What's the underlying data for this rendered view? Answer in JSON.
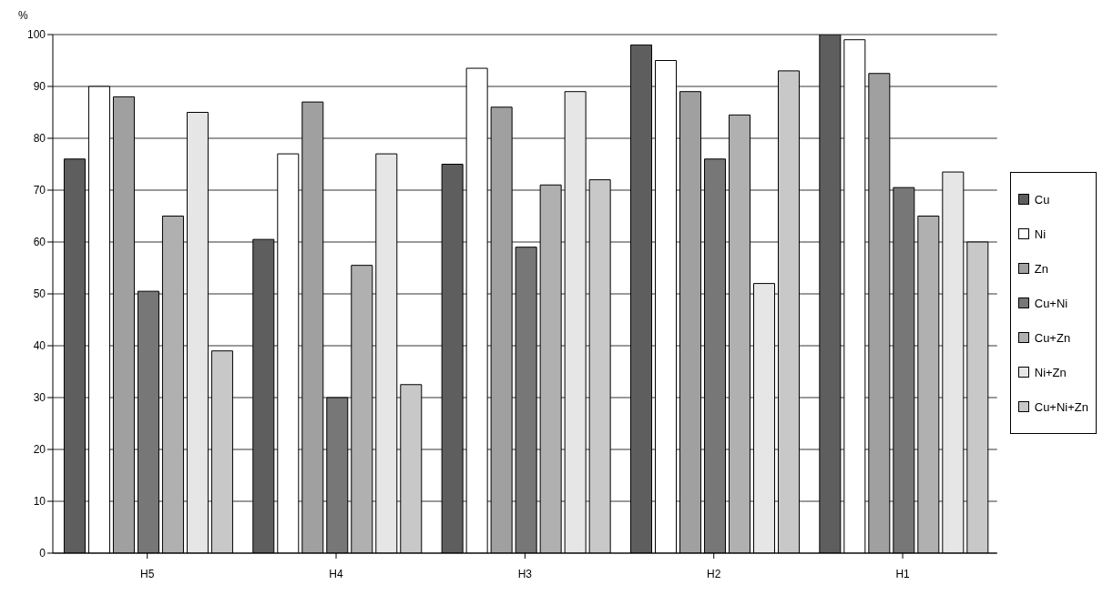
{
  "chart_data": {
    "type": "bar",
    "ylabel": "%",
    "categories": [
      "H5",
      "H4",
      "H3",
      "H2",
      "H1"
    ],
    "series": [
      {
        "name": "Cu",
        "color": "#5e5e5e",
        "values": [
          76,
          60.5,
          75,
          98,
          100
        ]
      },
      {
        "name": "Ni",
        "color": "#ffffff",
        "values": [
          90,
          77,
          93.5,
          95,
          99
        ]
      },
      {
        "name": "Zn",
        "color": "#a0a0a0",
        "values": [
          88,
          87,
          86,
          89,
          92.5
        ]
      },
      {
        "name": "Cu+Ni",
        "color": "#777777",
        "values": [
          50.5,
          30,
          59,
          76,
          70.5
        ]
      },
      {
        "name": "Cu+Zn",
        "color": "#b0b0b0",
        "values": [
          65,
          55.5,
          71,
          84.5,
          65
        ]
      },
      {
        "name": "Ni+Zn",
        "color": "#e6e6e6",
        "values": [
          85,
          77,
          89,
          52,
          73.5
        ]
      },
      {
        "name": "Cu+Ni+Zn",
        "color": "#c8c8c8",
        "values": [
          39,
          32.5,
          72,
          93,
          60
        ]
      }
    ],
    "ylim": [
      0,
      100
    ],
    "yticks": [
      0,
      10,
      20,
      30,
      40,
      50,
      60,
      70,
      80,
      90,
      100
    ],
    "grid": "y",
    "legend": "right"
  }
}
